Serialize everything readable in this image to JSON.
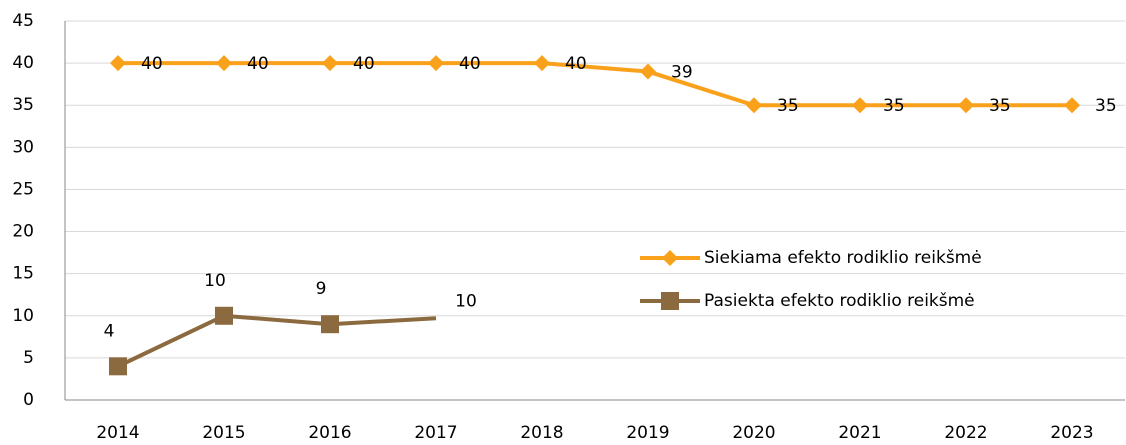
{
  "chart_data": {
    "type": "line",
    "categories": [
      "2014",
      "2015",
      "2016",
      "2017",
      "2018",
      "2019",
      "2020",
      "2021",
      "2022",
      "2023"
    ],
    "series": [
      {
        "name": "Siekiama efekto rodiklio reikšmė",
        "color": "#f9a11b",
        "marker": "diamond",
        "values": [
          40,
          40,
          40,
          40,
          40,
          39,
          35,
          35,
          35,
          35
        ]
      },
      {
        "name": "Pasiekta efekto rodiklio reikšmė",
        "color": "#8c6a3f",
        "marker": "square",
        "values": [
          4,
          10,
          9,
          9.7,
          null,
          null,
          null,
          null,
          null,
          null
        ],
        "value_labels": [
          "4",
          "10",
          "9",
          "10",
          null,
          null,
          null,
          null,
          null,
          null
        ]
      }
    ],
    "ylim": [
      0,
      45
    ],
    "yticks": [
      0,
      5,
      10,
      15,
      20,
      25,
      30,
      35,
      40,
      45
    ],
    "grid": true
  }
}
